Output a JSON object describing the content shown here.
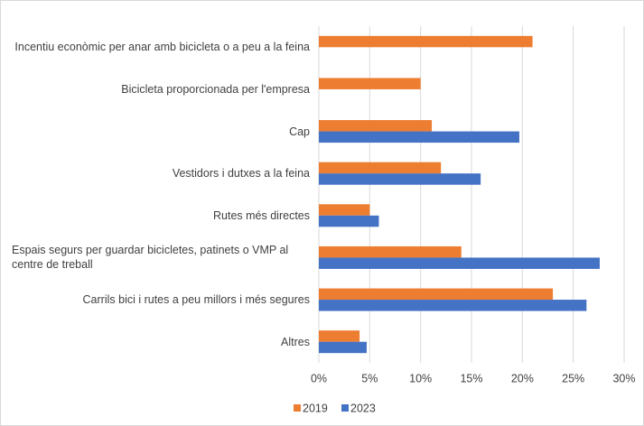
{
  "chart_data": {
    "type": "hbar",
    "categories": [
      "Incentiu econòmic per anar amb bicicleta o a peu a la feina",
      "Bicicleta proporcionada per l'empresa",
      "Cap",
      "Vestidors i dutxes a la feina",
      "Rutes més directes",
      "Espais segurs per guardar bicicletes, patinets o VMP al centre de treball",
      "Carrils bici i rutes a peu millors i més segures",
      "Altres"
    ],
    "series": [
      {
        "name": "2019",
        "color": "#ed7d31",
        "values": [
          21.0,
          10.0,
          11.1,
          12.0,
          5.0,
          14.0,
          23.0,
          4.0
        ]
      },
      {
        "name": "2023",
        "color": "#4472c4",
        "values": [
          null,
          null,
          19.7,
          15.9,
          5.9,
          27.6,
          26.3,
          4.7
        ]
      }
    ],
    "xlim": [
      0,
      30
    ],
    "xticks": [
      {
        "value": 0,
        "label": "0%"
      },
      {
        "value": 5,
        "label": "5%"
      },
      {
        "value": 10,
        "label": "10%"
      },
      {
        "value": 15,
        "label": "15%"
      },
      {
        "value": 20,
        "label": "20%"
      },
      {
        "value": 25,
        "label": "25%"
      },
      {
        "value": 30,
        "label": "30%"
      }
    ],
    "grid": true,
    "legend": "bottom"
  }
}
